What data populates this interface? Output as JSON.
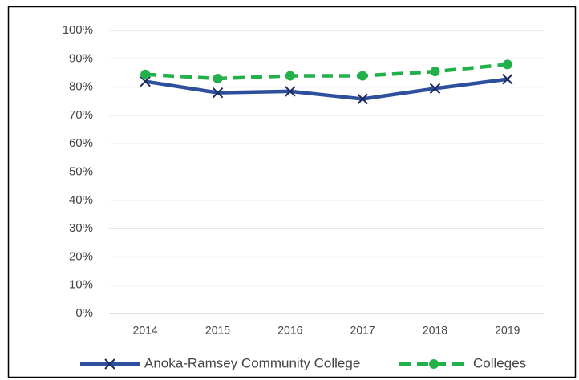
{
  "chart_data": {
    "type": "line",
    "categories": [
      "2014",
      "2015",
      "2016",
      "2017",
      "2018",
      "2019"
    ],
    "series": [
      {
        "name": "Anoka-Ramsey Community College",
        "color": "#2e4f9c",
        "marker_color": "#1c2a5e",
        "marker": "x",
        "dash": false,
        "values": [
          82,
          78,
          78.5,
          75.8,
          79.5,
          82.8
        ]
      },
      {
        "name": "Colleges",
        "color": "#22b04b",
        "marker_color": "#22b04b",
        "marker": "circle",
        "dash": true,
        "values": [
          84.5,
          83,
          84,
          84,
          85.5,
          88
        ]
      }
    ],
    "ylim": [
      0,
      100
    ],
    "yticks": [
      {
        "value": 0,
        "label": "0%"
      },
      {
        "value": 10,
        "label": "10%"
      },
      {
        "value": 20,
        "label": "20%"
      },
      {
        "value": 30,
        "label": "30%"
      },
      {
        "value": 40,
        "label": "40%"
      },
      {
        "value": 50,
        "label": "50%"
      },
      {
        "value": 60,
        "label": "60%"
      },
      {
        "value": 70,
        "label": "70%"
      },
      {
        "value": 80,
        "label": "80%"
      },
      {
        "value": 90,
        "label": "90%"
      },
      {
        "value": 100,
        "label": "100%"
      }
    ],
    "grid": true,
    "legend": "bottom"
  }
}
